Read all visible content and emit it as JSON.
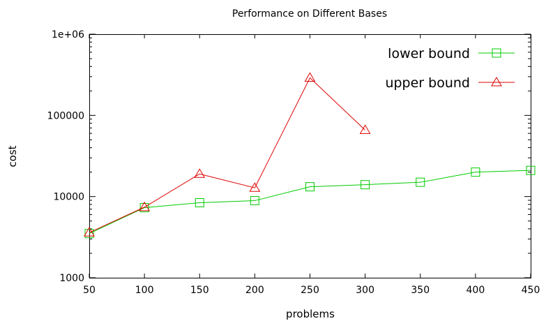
{
  "chart_data": {
    "type": "line",
    "title": "Performance on Different Bases",
    "xlabel": "problems",
    "ylabel": "cost",
    "x_scale": "linear",
    "y_scale": "log",
    "xlim": [
      50,
      450
    ],
    "ylim": [
      1000,
      1000000
    ],
    "x_ticks": [
      50,
      100,
      150,
      200,
      250,
      300,
      350,
      400,
      450
    ],
    "x_tick_labels": [
      "50",
      "100",
      "150",
      "200",
      "250",
      "300",
      "350",
      "400",
      "450"
    ],
    "y_ticks": [
      1000,
      10000,
      100000,
      1000000
    ],
    "y_tick_labels": [
      "1000",
      "10000",
      "100000",
      "1e+06"
    ],
    "grid": false,
    "legend_position": "top-right",
    "series": [
      {
        "name": "lower bound",
        "color": "#00cc00",
        "marker": "square",
        "x": [
          50,
          100,
          150,
          200,
          250,
          300,
          350,
          400,
          450
        ],
        "y": [
          3500,
          7300,
          8400,
          8900,
          13200,
          14000,
          15000,
          20000,
          21000
        ]
      },
      {
        "name": "upper bound",
        "color": "#dd0000",
        "marker": "triangle",
        "x": [
          50,
          100,
          150,
          200,
          250,
          300
        ],
        "y": [
          3600,
          7400,
          19000,
          12800,
          290000,
          66000
        ]
      }
    ]
  }
}
